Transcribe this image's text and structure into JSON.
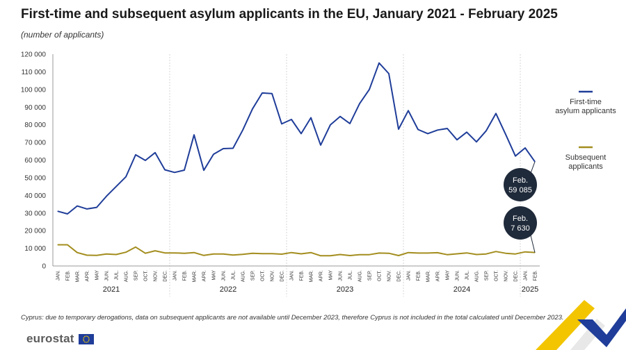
{
  "title": "First-time and subsequent asylum applicants in the EU, January 2021 - February 2025",
  "subtitle": "(number of applicants)",
  "footnote": "Cyprus: due to temporary derogations, data on subsequent applicants are not available until December 2023, therefore Cyprus is not included in the total calculated until December 2023.",
  "logo": {
    "text": "eurostat",
    "icon": "eu-flag-icon"
  },
  "colors": {
    "first_time": "#1f3d99",
    "subsequent": "#a38d1e",
    "callout": "#1f2a3a"
  },
  "chart_data": {
    "type": "line",
    "title": "First-time and subsequent asylum applicants in the EU, January 2021 - February 2025",
    "subtitle": "(number of applicants)",
    "ylim": [
      0,
      120000
    ],
    "yticks": [
      0,
      10000,
      20000,
      30000,
      40000,
      50000,
      60000,
      70000,
      80000,
      90000,
      100000,
      110000,
      120000
    ],
    "ytick_labels": [
      "0",
      "10 000",
      "20 000",
      "30 000",
      "40 000",
      "50 000",
      "60 000",
      "70 000",
      "80 000",
      "90 000",
      "100 000",
      "110 000",
      "120 000"
    ],
    "x": [
      "JAN.",
      "FEB.",
      "MAR.",
      "APR.",
      "MAY",
      "JUN.",
      "JUL.",
      "AUG.",
      "SEP.",
      "OCT.",
      "NOV.",
      "DEC.",
      "JAN.",
      "FEB.",
      "MAR.",
      "APR.",
      "MAY",
      "JUN.",
      "JUL.",
      "AUG.",
      "SEP.",
      "OCT.",
      "NOV.",
      "DEC.",
      "JAN.",
      "FEB.",
      "MAR.",
      "APR.",
      "MAY",
      "JUN.",
      "JUL.",
      "AUG.",
      "SEP.",
      "OCT.",
      "NOV.",
      "DEC.",
      "JAN.",
      "FEB.",
      "MAR.",
      "APR.",
      "MAY",
      "JUN.",
      "JUL.",
      "AUG.",
      "SEP.",
      "OCT.",
      "NOV.",
      "DEC.",
      "JAN.",
      "FEB."
    ],
    "years": [
      {
        "label": "2021",
        "start": 0,
        "end": 11
      },
      {
        "label": "2022",
        "start": 12,
        "end": 23
      },
      {
        "label": "2023",
        "start": 24,
        "end": 35
      },
      {
        "label": "2024",
        "start": 36,
        "end": 47
      },
      {
        "label": "2025",
        "start": 48,
        "end": 49
      }
    ],
    "grid": "vertical lines at year boundaries",
    "legend_position": "right",
    "series": [
      {
        "name": "First-time asylum applicants",
        "legend_lines": [
          "First-time",
          "asylum applicants"
        ],
        "values": [
          31000,
          29500,
          34000,
          32300,
          33200,
          39500,
          45000,
          50500,
          63000,
          59800,
          64200,
          54500,
          53000,
          54300,
          74300,
          54200,
          63300,
          66500,
          66700,
          77000,
          89000,
          98000,
          97700,
          80500,
          83000,
          75000,
          84000,
          68500,
          80000,
          84700,
          80700,
          92000,
          100000,
          115000,
          109000,
          77500,
          88000,
          77300,
          75000,
          77000,
          77900,
          71500,
          75800,
          70300,
          76600,
          86400,
          74500,
          62300,
          66900,
          59085
        ]
      },
      {
        "name": "Subsequent applicants",
        "legend_lines": [
          "Subsequent",
          "applicants"
        ],
        "values": [
          12000,
          12000,
          7600,
          6100,
          6000,
          6800,
          6500,
          7800,
          10700,
          7200,
          8600,
          7400,
          7400,
          7200,
          7600,
          6000,
          6800,
          6800,
          6200,
          6600,
          7200,
          7000,
          7000,
          6700,
          7600,
          6900,
          7600,
          5800,
          5800,
          6500,
          5900,
          6400,
          6400,
          7300,
          7200,
          5900,
          7600,
          7300,
          7300,
          7500,
          6400,
          6900,
          7400,
          6500,
          6800,
          8200,
          7200,
          6800,
          8000,
          7630
        ]
      }
    ],
    "annotations": [
      {
        "series": 0,
        "index": 49,
        "lines": [
          "Feb.",
          "59 085"
        ]
      },
      {
        "series": 1,
        "index": 49,
        "lines": [
          "Feb.",
          "7 630"
        ]
      }
    ]
  }
}
